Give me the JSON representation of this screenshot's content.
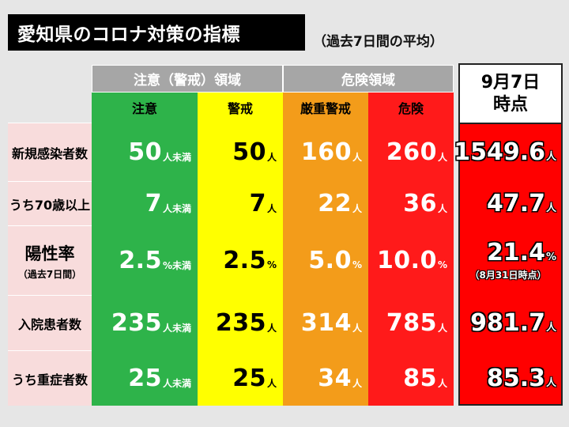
{
  "title": "愛知県のコロナ対策の指標",
  "subtitle": "（過去7日間の平均）",
  "groups": {
    "caution_group": "注意（警戒）領域",
    "danger_group": "危険領域"
  },
  "levels": [
    "注意",
    "警戒",
    "厳重警戒",
    "危険"
  ],
  "current_header": {
    "line1": "9月7日",
    "line2": "時点"
  },
  "rows": [
    {
      "label": "新規感染者数",
      "values": [
        {
          "num": "50",
          "unit": "人未満"
        },
        {
          "num": "50",
          "unit": "人"
        },
        {
          "num": "160",
          "unit": "人"
        },
        {
          "num": "260",
          "unit": "人"
        }
      ],
      "current": {
        "num": "1549.6",
        "unit": "人"
      }
    },
    {
      "label": "うち70歳以上",
      "values": [
        {
          "num": "7",
          "unit": "人未満"
        },
        {
          "num": "7",
          "unit": "人"
        },
        {
          "num": "22",
          "unit": "人"
        },
        {
          "num": "36",
          "unit": "人"
        }
      ],
      "current": {
        "num": "47.7",
        "unit": "人"
      }
    },
    {
      "label": "陽性率",
      "sublabel": "（過去7日間）",
      "values": [
        {
          "num": "2.5",
          "unit": "%未満"
        },
        {
          "num": "2.5",
          "unit": "%"
        },
        {
          "num": "5.0",
          "unit": "%"
        },
        {
          "num": "10.0",
          "unit": "%"
        }
      ],
      "current": {
        "num": "21.4",
        "unit": "%",
        "note": "（8月31日時点）"
      }
    },
    {
      "label": "入院患者数",
      "values": [
        {
          "num": "235",
          "unit": "人未満"
        },
        {
          "num": "235",
          "unit": "人"
        },
        {
          "num": "314",
          "unit": "人"
        },
        {
          "num": "785",
          "unit": "人"
        }
      ],
      "current": {
        "num": "981.7",
        "unit": "人"
      }
    },
    {
      "label": "うち重症者数",
      "values": [
        {
          "num": "25",
          "unit": "人未満"
        },
        {
          "num": "25",
          "unit": "人"
        },
        {
          "num": "34",
          "unit": "人"
        },
        {
          "num": "85",
          "unit": "人"
        }
      ],
      "current": {
        "num": "85.3",
        "unit": "人"
      }
    }
  ],
  "colors": {
    "green": "#2eb34a",
    "yellow": "#ffff00",
    "orange": "#f39c1a",
    "red": "#ff1a1a"
  }
}
